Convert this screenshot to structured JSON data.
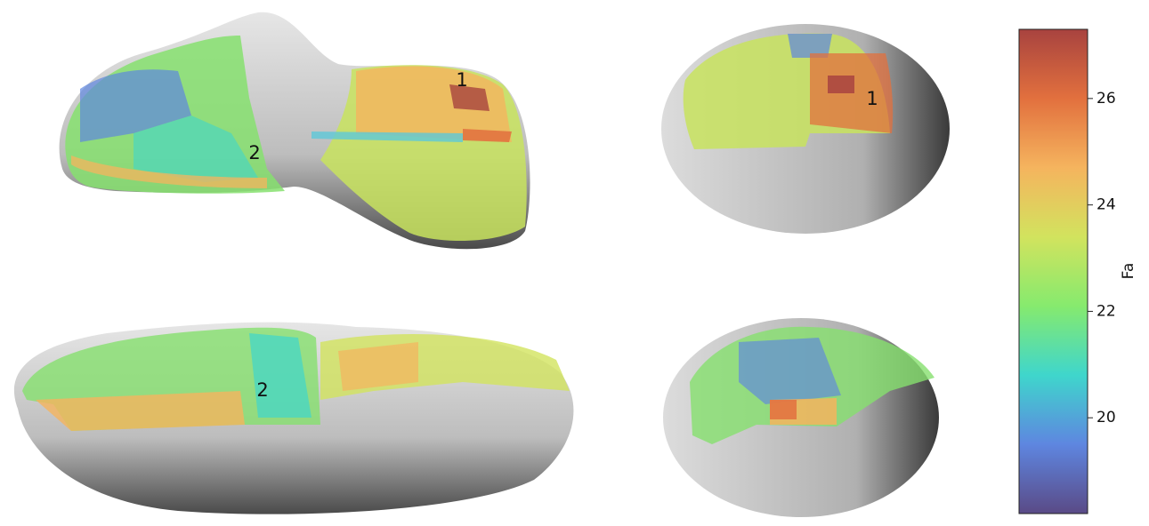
{
  "chart_data": {
    "type": "colorbar",
    "ylabel": "Fa",
    "ylim": [
      18.2,
      27.3
    ],
    "yticks": [
      20,
      22,
      24,
      26
    ],
    "colors": [
      "#5a4a86",
      "#5e86e0",
      "#3fd6cc",
      "#86ea6e",
      "#d2e35e",
      "#f5b45e",
      "#e2703e",
      "#a8433f"
    ],
    "annotations": [
      "1",
      "2",
      "1",
      "2"
    ]
  }
}
